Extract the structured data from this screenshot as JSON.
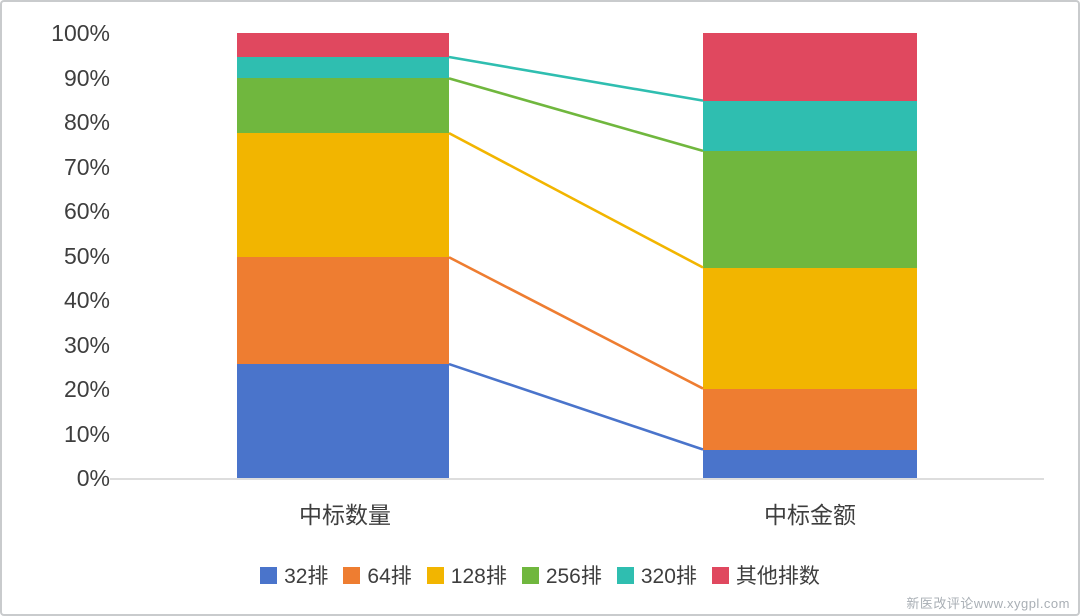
{
  "chart_data": {
    "type": "bar",
    "subtype": "100-percent-stacked-columns-with-connectors",
    "title": "",
    "xlabel": "",
    "ylabel": "",
    "categories": [
      "中标数量",
      "中标金额"
    ],
    "series": [
      {
        "name": "32排",
        "color": "#4A74CB",
        "values": [
          25.6,
          6.4
        ]
      },
      {
        "name": "64排",
        "color": "#EE7D31",
        "values": [
          24.0,
          13.7
        ]
      },
      {
        "name": "128排",
        "color": "#F2B500",
        "values": [
          27.9,
          27.2
        ]
      },
      {
        "name": "256排",
        "color": "#70B73E",
        "values": [
          12.3,
          26.2
        ]
      },
      {
        "name": "320排",
        "color": "#2FBEB0",
        "values": [
          4.8,
          11.3
        ]
      },
      {
        "name": "其他排数",
        "color": "#E0485F",
        "values": [
          5.4,
          15.2
        ]
      }
    ],
    "y_ticks": [
      "0%",
      "10%",
      "20%",
      "30%",
      "40%",
      "50%",
      "60%",
      "70%",
      "80%",
      "90%",
      "100%"
    ],
    "ylim": [
      0,
      100
    ],
    "grid": false,
    "legend_position": "bottom",
    "connector_lines": true
  },
  "watermark": {
    "text": "新医改评论www.xygpl.com"
  }
}
